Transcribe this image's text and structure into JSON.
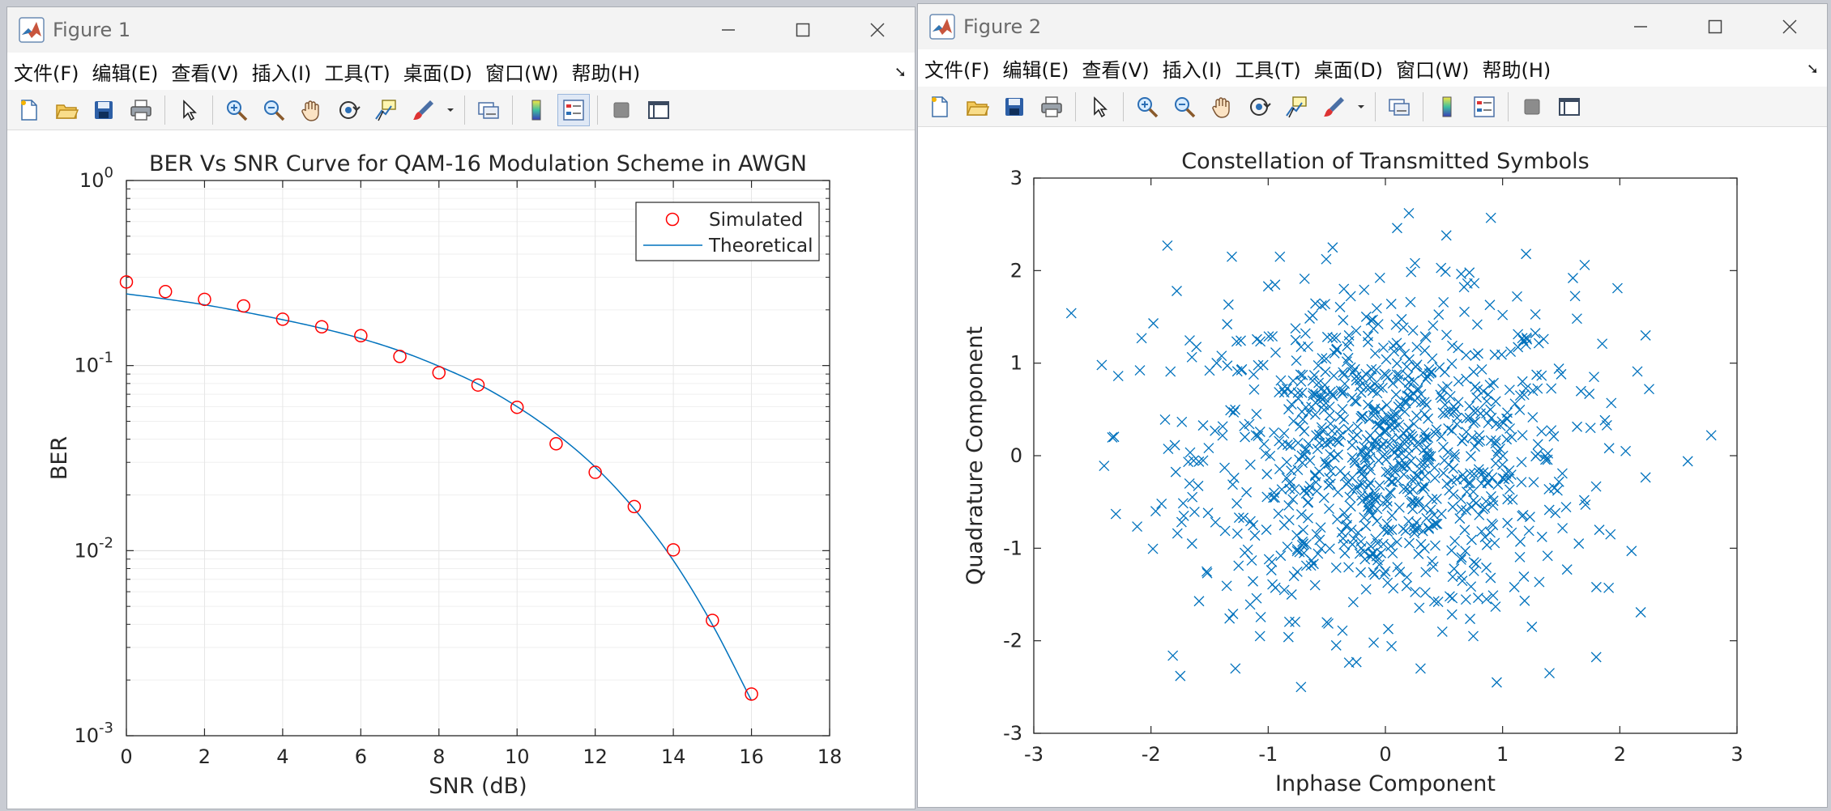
{
  "fig1": {
    "title": "Figure 1",
    "menu": [
      "文件(F)",
      "编辑(E)",
      "查看(V)",
      "插入(I)",
      "工具(T)",
      "桌面(D)",
      "窗口(W)",
      "帮助(H)"
    ]
  },
  "fig2": {
    "title": "Figure 2",
    "menu": [
      "文件(F)",
      "编辑(E)",
      "查看(V)",
      "插入(I)",
      "工具(T)",
      "桌面(D)",
      "窗口(W)",
      "帮助(H)"
    ]
  },
  "icons": [
    "new-file-icon",
    "open-folder-icon",
    "save-icon",
    "print-icon",
    "select-pointer-icon",
    "zoom-in-icon",
    "zoom-out-icon",
    "pan-hand-icon",
    "rotate-3d-icon",
    "data-cursor-icon",
    "brush-icon",
    "link-plot-icon",
    "colorbar-icon",
    "legend-icon",
    "hide-plot-tools-icon",
    "show-plot-tools-icon"
  ],
  "colors": {
    "simulated_marker": "#ff0000",
    "theoretical_line": "#0072bd",
    "scatter_marker": "#0072bd",
    "grid": "#e6e6e6"
  },
  "chart_data": [
    {
      "type": "line",
      "title": "BER Vs SNR Curve for QAM-16 Modulation Scheme in AWGN",
      "xlabel": "SNR (dB)",
      "ylabel": "BER",
      "xlim": [
        0,
        18
      ],
      "ylim": [
        0.001,
        1
      ],
      "yscale": "log",
      "grid": true,
      "minor_grid": true,
      "legend_position": "top-right",
      "x_ticks": [
        0,
        2,
        4,
        6,
        8,
        10,
        12,
        14,
        16,
        18
      ],
      "y_ticks": [
        {
          "base": "10",
          "exp": "-3",
          "value": 0.001
        },
        {
          "base": "10",
          "exp": "-2",
          "value": 0.01
        },
        {
          "base": "10",
          "exp": "-1",
          "value": 0.1
        },
        {
          "base": "10",
          "exp": "0",
          "value": 1
        }
      ],
      "series": [
        {
          "name": "Simulated",
          "style": "markers",
          "marker": "circle",
          "x": [
            0,
            1,
            2,
            3,
            4,
            5,
            6,
            7,
            8,
            9,
            10,
            11,
            12,
            13,
            14,
            15,
            16
          ],
          "y": [
            0.283,
            0.251,
            0.228,
            0.21,
            0.178,
            0.162,
            0.145,
            0.112,
            0.0915,
            0.0785,
            0.0595,
            0.0378,
            0.0265,
            0.0173,
            0.0101,
            0.0042,
            0.00168
          ]
        },
        {
          "name": "Theoretical",
          "style": "line",
          "x": [
            0,
            1,
            2,
            3,
            4,
            5,
            6,
            7,
            8,
            9,
            10,
            11,
            12,
            13,
            14,
            15,
            16
          ],
          "y": [
            0.244,
            0.229,
            0.213,
            0.195,
            0.177,
            0.159,
            0.14,
            0.12,
            0.0992,
            0.0795,
            0.06,
            0.0428,
            0.0283,
            0.0168,
            0.00885,
            0.00398,
            0.00155
          ]
        }
      ]
    },
    {
      "type": "scatter",
      "title": "Constellation of Transmitted Symbols",
      "xlabel": "Inphase Component",
      "ylabel": "Quadrature Component",
      "xlim": [
        -3,
        3
      ],
      "ylim": [
        -3,
        3
      ],
      "grid": false,
      "x_ticks": [
        -3,
        -2,
        -1,
        0,
        1,
        2,
        3
      ],
      "y_ticks": [
        -3,
        -2,
        -1,
        0,
        1,
        2,
        3
      ],
      "series": [
        {
          "marker": "x",
          "sample_points": [
            [
              -2.68,
              1.54
            ],
            [
              -2.42,
              0.98
            ],
            [
              -2.4,
              -0.11
            ],
            [
              -2.3,
              -0.63
            ],
            [
              -2.08,
              1.27
            ],
            [
              -1.98,
              1.43
            ],
            [
              -1.96,
              -0.6
            ],
            [
              -1.91,
              -0.52
            ],
            [
              -1.88,
              0.39
            ],
            [
              -1.86,
              2.27
            ],
            [
              -1.78,
              1.78
            ],
            [
              -1.75,
              -2.38
            ],
            [
              -1.72,
              -0.65
            ],
            [
              -1.65,
              -0.95
            ],
            [
              -1.5,
              0.92
            ],
            [
              -1.45,
              -0.72
            ],
            [
              -1.35,
              1.42
            ],
            [
              -1.31,
              2.15
            ],
            [
              -1.3,
              -1.71
            ],
            [
              -1.28,
              -2.3
            ],
            [
              -1.2,
              -1.05
            ],
            [
              -1.1,
              0.45
            ],
            [
              -1.07,
              -1.95
            ],
            [
              -1.0,
              1.83
            ],
            [
              -0.95,
              -0.4
            ],
            [
              -0.9,
              2.15
            ],
            [
              -0.88,
              0.12
            ],
            [
              -0.8,
              -1.5
            ],
            [
              -0.78,
              -1.3
            ],
            [
              -0.72,
              -2.5
            ],
            [
              -0.7,
              -0.95
            ],
            [
              -0.66,
              1.18
            ],
            [
              -0.6,
              -1.4
            ],
            [
              -0.55,
              0.72
            ],
            [
              -0.5,
              -1.8
            ],
            [
              -0.45,
              2.25
            ],
            [
              -0.42,
              -2.05
            ],
            [
              -0.35,
              -0.62
            ],
            [
              -0.25,
              1.35
            ],
            [
              -0.2,
              0.04
            ],
            [
              -0.15,
              -0.55
            ],
            [
              -0.1,
              -2.02
            ],
            [
              -0.05,
              0.32
            ],
            [
              0.0,
              -1.25
            ],
            [
              0.05,
              1.64
            ],
            [
              0.1,
              2.46
            ],
            [
              0.15,
              -0.12
            ],
            [
              0.2,
              2.62
            ],
            [
              0.25,
              -0.8
            ],
            [
              0.3,
              -2.3
            ],
            [
              0.35,
              0.55
            ],
            [
              0.4,
              1.05
            ],
            [
              0.45,
              -1.58
            ],
            [
              0.52,
              2.38
            ],
            [
              0.58,
              -0.42
            ],
            [
              0.65,
              -1.1
            ],
            [
              0.7,
              1.86
            ],
            [
              0.75,
              -1.95
            ],
            [
              0.8,
              0.22
            ],
            [
              0.85,
              -0.88
            ],
            [
              0.9,
              2.57
            ],
            [
              0.95,
              -2.45
            ],
            [
              1.0,
              1.52
            ],
            [
              1.05,
              -0.25
            ],
            [
              1.1,
              -1.42
            ],
            [
              1.15,
              0.65
            ],
            [
              1.2,
              2.18
            ],
            [
              1.25,
              -1.85
            ],
            [
              1.3,
              0.02
            ],
            [
              1.35,
              1.26
            ],
            [
              1.4,
              -2.35
            ],
            [
              1.45,
              -0.62
            ],
            [
              1.5,
              0.88
            ],
            [
              1.55,
              -1.23
            ],
            [
              1.6,
              1.92
            ],
            [
              1.65,
              -0.95
            ],
            [
              1.7,
              2.06
            ],
            [
              1.75,
              0.3
            ],
            [
              1.8,
              -1.42
            ],
            [
              1.85,
              1.21
            ],
            [
              1.92,
              -0.85
            ],
            [
              1.98,
              1.81
            ],
            [
              2.05,
              0.05
            ],
            [
              2.1,
              -1.03
            ],
            [
              2.15,
              0.91
            ],
            [
              2.22,
              1.3
            ],
            [
              2.25,
              0.72
            ],
            [
              2.58,
              -0.06
            ],
            [
              2.78,
              0.22
            ]
          ]
        }
      ]
    }
  ]
}
